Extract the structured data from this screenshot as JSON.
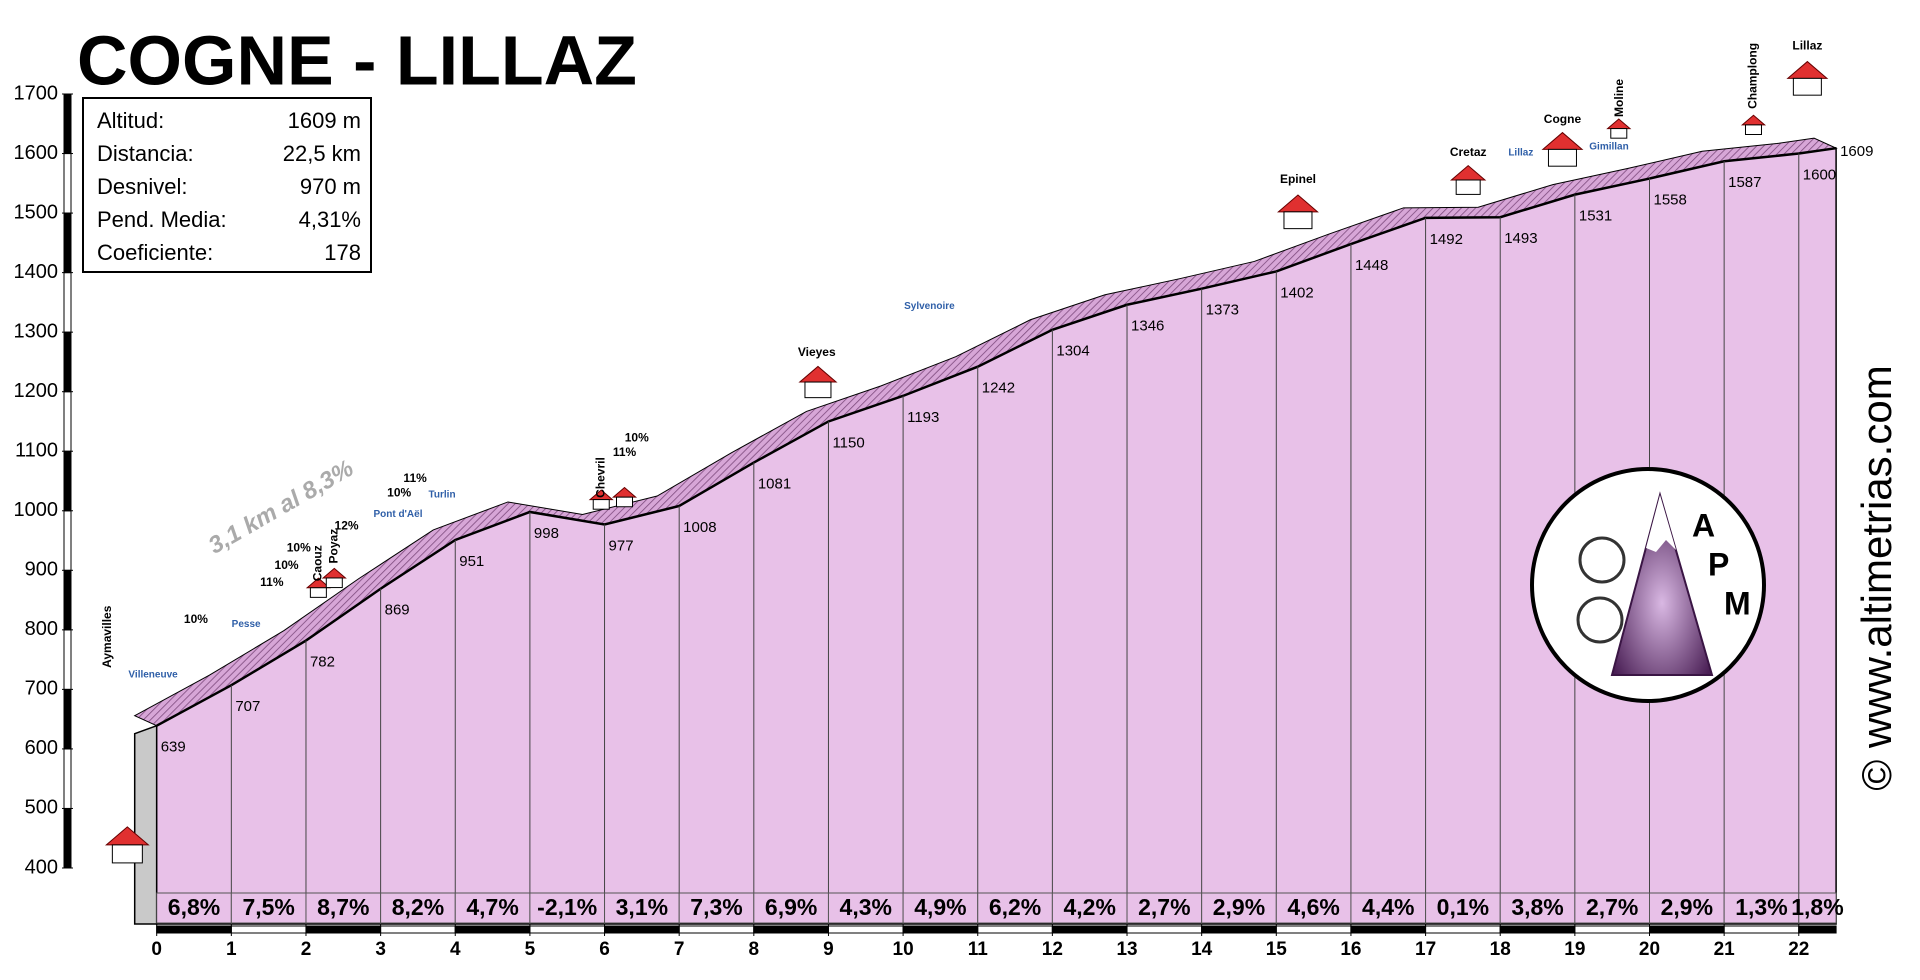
{
  "chart_data": {
    "type": "area",
    "title": "COGNE - LILLAZ",
    "x": [
      0,
      1,
      2,
      3,
      4,
      5,
      6,
      7,
      8,
      9,
      10,
      11,
      12,
      13,
      14,
      15,
      16,
      17,
      18,
      19,
      20,
      21,
      22,
      22.5
    ],
    "values": [
      639,
      707,
      782,
      869,
      951,
      998,
      977,
      1008,
      1081,
      1150,
      1193,
      1242,
      1304,
      1346,
      1373,
      1402,
      1448,
      1492,
      1493,
      1531,
      1558,
      1587,
      1600,
      1609
    ],
    "color": "#e8c1e8",
    "xlim": [
      0,
      22.5
    ],
    "xticks": [
      0,
      1,
      2,
      3,
      4,
      5,
      6,
      7,
      8,
      9,
      10,
      11,
      12,
      13,
      14,
      15,
      16,
      17,
      18,
      19,
      20,
      21,
      22
    ],
    "ylim": [
      400,
      1700
    ],
    "yticks": [
      400,
      500,
      600,
      700,
      800,
      900,
      1000,
      1100,
      1200,
      1300,
      1400,
      1500,
      1600,
      1700
    ],
    "gradients": {
      "values": [
        6.8,
        7.5,
        8.7,
        8.2,
        4.7,
        -2.1,
        3.1,
        7.3,
        6.9,
        4.3,
        4.9,
        6.2,
        4.2,
        2.7,
        2.9,
        4.6,
        4.4,
        0.1,
        3.8,
        2.7,
        2.9,
        1.3,
        1.8
      ],
      "value_labels": [
        "6,8%",
        "7,5%",
        "8,7%",
        "8,2%",
        "4,7%",
        "-2,1%",
        "3,1%",
        "7,3%",
        "6,9%",
        "4,3%",
        "4,9%",
        "6,2%",
        "4,2%",
        "2,7%",
        "2,9%",
        "4,6%",
        "4,4%",
        "0,1%",
        "3,8%",
        "2,7%",
        "2,9%",
        "1,3%",
        "1,8%"
      ]
    },
    "stats": [
      {
        "label": "Altitud:",
        "value": "1609 m"
      },
      {
        "label": "Distancia:",
        "value": "22,5 km"
      },
      {
        "label": "Desnivel:",
        "value": "970 m"
      },
      {
        "label": "Pend. Media:",
        "value": "4,31%"
      },
      {
        "label": "Coeficiente:",
        "value": "178"
      }
    ],
    "annotations": [
      "Aymavilles",
      "Villeneuve",
      "Pesse",
      "10%",
      "11%",
      "10%",
      "10%",
      "Caouz",
      "Poyaz",
      "12%",
      "Pont d'Aël",
      "10%",
      "11%",
      "Turlin",
      "Chevril",
      "11%",
      "10%",
      "Vieyes",
      "Sylvenoire",
      "Epinel",
      "Cretaz",
      "Lillaz",
      "Cogne",
      "Gimillan",
      "Moline",
      "Champlong",
      "Lillaz",
      "3,1 km al 8,3%"
    ],
    "logo": "APM",
    "website": "© www.altimetrias.com"
  }
}
